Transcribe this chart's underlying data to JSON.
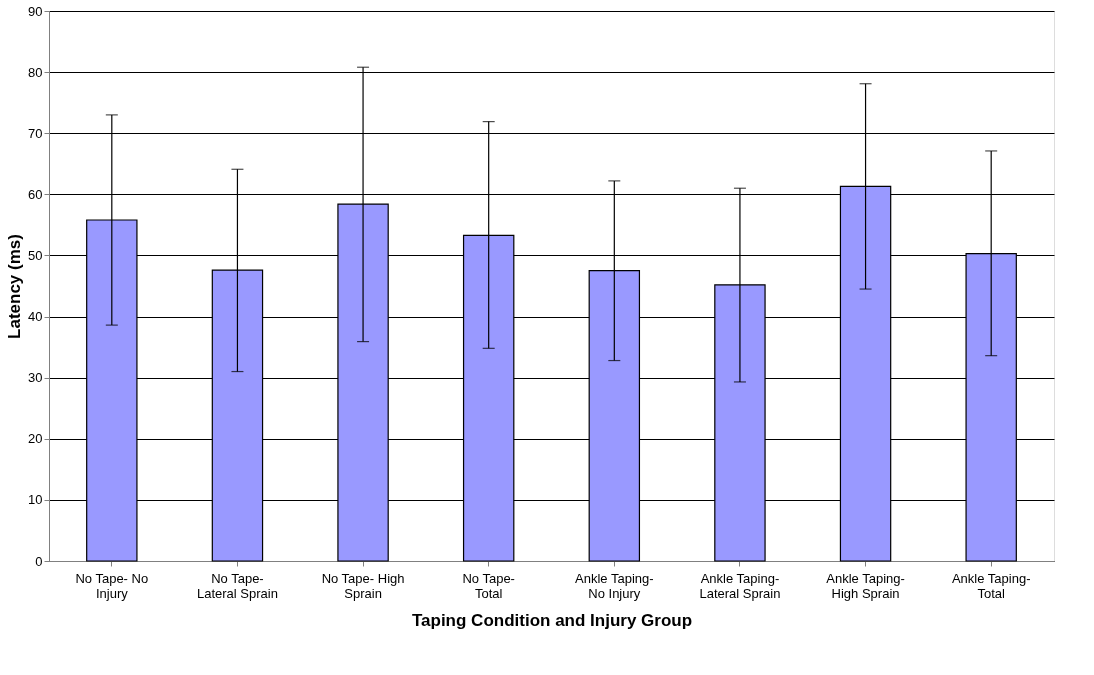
{
  "chart_data": {
    "type": "bar",
    "xlabel": "Taping Condition and Injury Group",
    "ylabel": "Latency (ms)",
    "categories": [
      "No Tape- No\nInjury",
      "No Tape-\nLateral Sprain",
      "No Tape- High\nSprain",
      "No Tape-\nTotal",
      "Ankle Taping-\nNo Injury",
      "Ankle Taping-\nLateral Sprain",
      "Ankle Taping-\nHigh Sprain",
      "Ankle Taping-\nTotal"
    ],
    "values": [
      55.8,
      47.6,
      58.4,
      53.3,
      47.5,
      45.2,
      61.3,
      50.3
    ],
    "errors": [
      [
        38.6,
        73.0
      ],
      [
        31.0,
        64.1
      ],
      [
        35.9,
        80.8
      ],
      [
        34.8,
        71.9
      ],
      [
        32.8,
        62.2
      ],
      [
        29.3,
        61.0
      ],
      [
        44.5,
        78.1
      ],
      [
        33.6,
        67.1
      ]
    ],
    "color": "#9999ff",
    "ylim": [
      0,
      90
    ],
    "yticks": [
      0,
      10,
      20,
      30,
      40,
      50,
      60,
      70,
      80,
      90
    ],
    "grid": "y"
  }
}
